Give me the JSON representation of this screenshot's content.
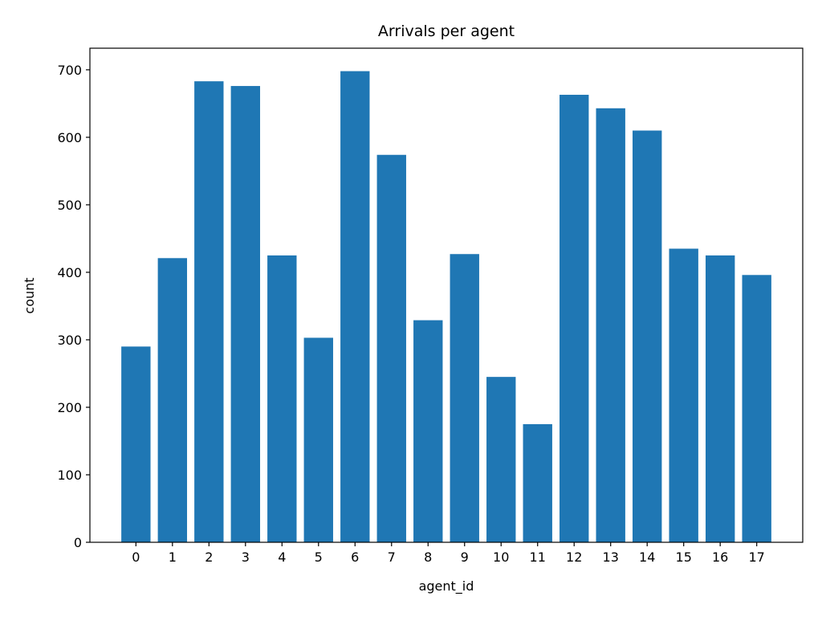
{
  "chart_data": {
    "type": "bar",
    "title": "Arrivals per agent",
    "xlabel": "agent_id",
    "ylabel": "count",
    "categories": [
      "0",
      "1",
      "2",
      "3",
      "4",
      "5",
      "6",
      "7",
      "8",
      "9",
      "10",
      "11",
      "12",
      "13",
      "14",
      "15",
      "16",
      "17"
    ],
    "values": [
      290,
      421,
      683,
      676,
      425,
      303,
      698,
      574,
      329,
      427,
      245,
      175,
      663,
      643,
      610,
      435,
      425,
      396
    ],
    "ylim": [
      0,
      732
    ],
    "yticks": [
      0,
      100,
      200,
      300,
      400,
      500,
      600,
      700
    ],
    "grid": false,
    "legend": "none",
    "colors": {
      "bar": "#1f77b4",
      "axis": "#000000",
      "background": "#ffffff"
    }
  }
}
